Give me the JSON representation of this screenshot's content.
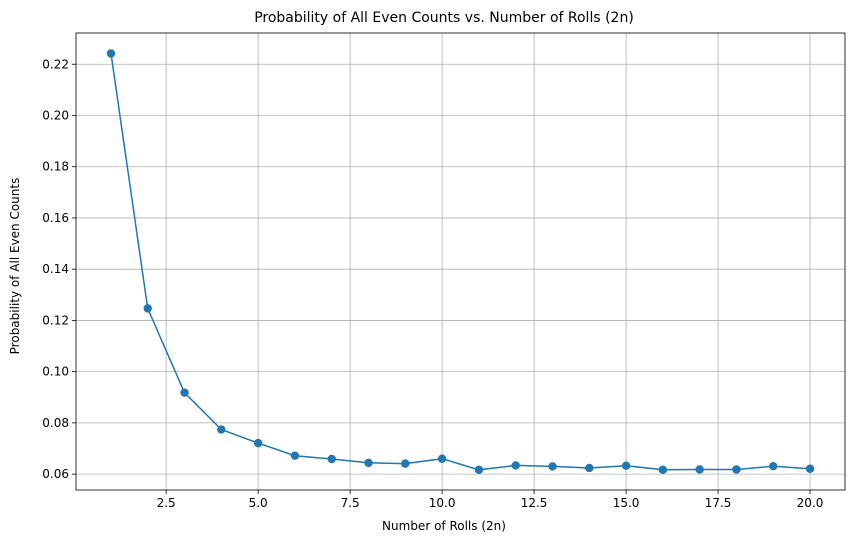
{
  "chart_data": {
    "type": "line",
    "title": "Probability of All Even Counts vs. Number of Rolls (2n)",
    "xlabel": "Number of Rolls (2n)",
    "ylabel": "Probability of All Even Counts",
    "xlim": [
      0.05,
      20.95
    ],
    "ylim": [
      0.0538,
      0.2322
    ],
    "xticks": [
      2.5,
      5.0,
      7.5,
      10.0,
      12.5,
      15.0,
      17.5,
      20.0
    ],
    "xtick_labels": [
      "2.5",
      "5.0",
      "7.5",
      "10.0",
      "12.5",
      "15.0",
      "17.5",
      "20.0"
    ],
    "yticks": [
      0.06,
      0.08,
      0.1,
      0.12,
      0.14,
      0.16,
      0.18,
      0.2,
      0.22
    ],
    "ytick_labels": [
      "0.06",
      "0.08",
      "0.10",
      "0.12",
      "0.14",
      "0.16",
      "0.18",
      "0.20",
      "0.22"
    ],
    "grid": true,
    "color": "#1f77b4",
    "series": [
      {
        "x": [
          1,
          2,
          3,
          4,
          5,
          6,
          7,
          8,
          9,
          10,
          11,
          12,
          13,
          14,
          15,
          16,
          17,
          18,
          19,
          20
        ],
        "values": [
          0.2242,
          0.1247,
          0.0918,
          0.0774,
          0.0721,
          0.0672,
          0.0659,
          0.0644,
          0.0641,
          0.066,
          0.0617,
          0.0634,
          0.063,
          0.0624,
          0.0633,
          0.0617,
          0.0618,
          0.0618,
          0.0631,
          0.0621
        ]
      }
    ]
  }
}
